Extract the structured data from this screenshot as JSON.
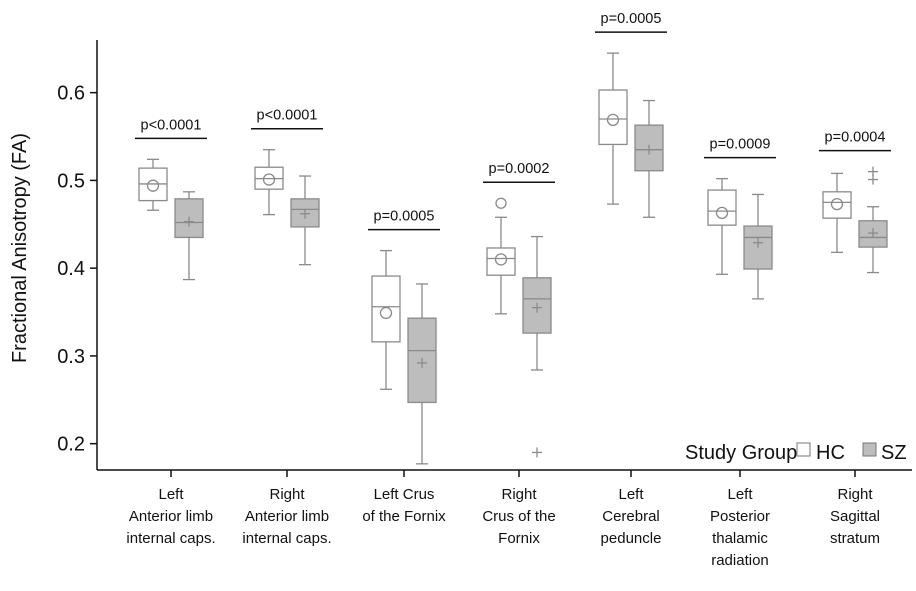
{
  "chart_data": {
    "type": "box",
    "ylabel": "Fractional Anisotropy (FA)",
    "xlabel": "",
    "ylim": [
      0.17,
      0.66
    ],
    "yticks": [
      0.2,
      0.3,
      0.4,
      0.5,
      0.6
    ],
    "ytick_labels": [
      "0.2",
      "0.3",
      "0.4",
      "0.5",
      "0.6"
    ],
    "grid": false,
    "legend": {
      "title": "Study Group",
      "placement": "bottom-right",
      "entries": [
        {
          "label": "HC",
          "fill": "#ffffff"
        },
        {
          "label": "SZ",
          "fill": "#bdbdbd"
        }
      ]
    },
    "colors": {
      "HC_fill": "#ffffff",
      "SZ_fill": "#bdbdbd",
      "stroke": "#8a8a8a"
    },
    "categories": [
      {
        "label_lines": [
          "Left",
          "Anterior limb",
          "internal caps."
        ],
        "p_value": "p<0.0001",
        "HC": {
          "whisker_low": 0.466,
          "q1": 0.477,
          "median": 0.496,
          "q3": 0.514,
          "whisker_high": 0.524,
          "mean": 0.494,
          "outliers": []
        },
        "SZ": {
          "whisker_low": 0.387,
          "q1": 0.435,
          "median": 0.452,
          "q3": 0.479,
          "whisker_high": 0.487,
          "mean": 0.453,
          "outliers": []
        }
      },
      {
        "label_lines": [
          "Right",
          "Anterior limb",
          "internal caps."
        ],
        "p_value": "p<0.0001",
        "HC": {
          "whisker_low": 0.461,
          "q1": 0.49,
          "median": 0.502,
          "q3": 0.515,
          "whisker_high": 0.535,
          "mean": 0.501,
          "outliers": []
        },
        "SZ": {
          "whisker_low": 0.404,
          "q1": 0.447,
          "median": 0.467,
          "q3": 0.479,
          "whisker_high": 0.505,
          "mean": 0.462,
          "outliers": []
        }
      },
      {
        "label_lines": [
          "Left Crus",
          "of the Fornix"
        ],
        "p_value": "p=0.0005",
        "HC": {
          "whisker_low": 0.262,
          "q1": 0.316,
          "median": 0.356,
          "q3": 0.391,
          "whisker_high": 0.42,
          "mean": 0.349,
          "outliers": []
        },
        "SZ": {
          "whisker_low": 0.177,
          "q1": 0.247,
          "median": 0.306,
          "q3": 0.343,
          "whisker_high": 0.382,
          "mean": 0.292,
          "outliers": []
        }
      },
      {
        "label_lines": [
          "Right",
          "Crus of the",
          "Fornix"
        ],
        "p_value": "p=0.0002",
        "HC": {
          "whisker_low": 0.348,
          "q1": 0.392,
          "median": 0.411,
          "q3": 0.423,
          "whisker_high": 0.458,
          "mean": 0.41,
          "outliers": [
            0.474
          ]
        },
        "SZ": {
          "whisker_low": 0.284,
          "q1": 0.326,
          "median": 0.365,
          "q3": 0.389,
          "whisker_high": 0.436,
          "mean": 0.355,
          "outliers": [
            0.19
          ]
        }
      },
      {
        "label_lines": [
          "Left",
          "Cerebral",
          "peduncle"
        ],
        "p_value": "p=0.0005",
        "HC": {
          "whisker_low": 0.473,
          "q1": 0.541,
          "median": 0.57,
          "q3": 0.603,
          "whisker_high": 0.645,
          "mean": 0.569,
          "outliers": []
        },
        "SZ": {
          "whisker_low": 0.458,
          "q1": 0.511,
          "median": 0.535,
          "q3": 0.563,
          "whisker_high": 0.591,
          "mean": 0.535,
          "outliers": []
        }
      },
      {
        "label_lines": [
          "Left",
          "Posterior",
          "thalamic",
          "radiation"
        ],
        "p_value": "p=0.0009",
        "HC": {
          "whisker_low": 0.393,
          "q1": 0.449,
          "median": 0.465,
          "q3": 0.489,
          "whisker_high": 0.502,
          "mean": 0.463,
          "outliers": []
        },
        "SZ": {
          "whisker_low": 0.365,
          "q1": 0.399,
          "median": 0.435,
          "q3": 0.448,
          "whisker_high": 0.484,
          "mean": 0.429,
          "outliers": []
        }
      },
      {
        "label_lines": [
          "Right",
          "Sagittal",
          "stratum"
        ],
        "p_value": "p=0.0004",
        "HC": {
          "whisker_low": 0.418,
          "q1": 0.457,
          "median": 0.475,
          "q3": 0.487,
          "whisker_high": 0.508,
          "mean": 0.473,
          "outliers": []
        },
        "SZ": {
          "whisker_low": 0.395,
          "q1": 0.424,
          "median": 0.435,
          "q3": 0.454,
          "whisker_high": 0.47,
          "mean": 0.44,
          "outliers": [
            0.501,
            0.51
          ]
        }
      }
    ]
  }
}
